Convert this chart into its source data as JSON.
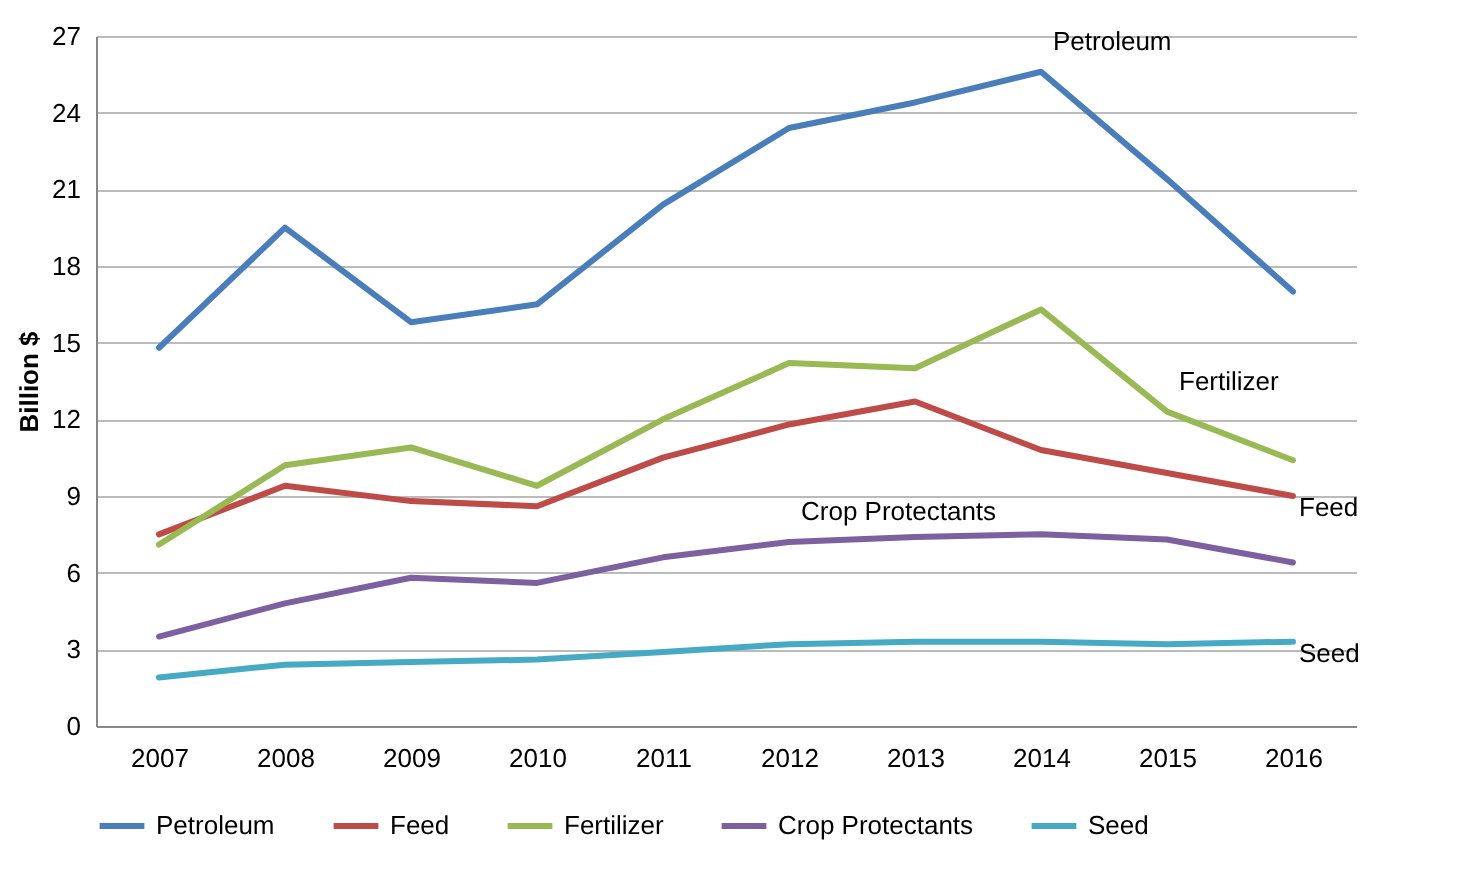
{
  "chart_data": {
    "type": "line",
    "ylabel": "Billion $",
    "categories": [
      "2007",
      "2008",
      "2009",
      "2010",
      "2011",
      "2012",
      "2013",
      "2014",
      "2015",
      "2016"
    ],
    "series": [
      {
        "name": "Petroleum",
        "color": "#4a7ebb",
        "values": [
          14.8,
          19.5,
          15.8,
          16.5,
          20.4,
          23.4,
          24.4,
          25.6,
          21.4,
          17.0
        ]
      },
      {
        "name": "Feed",
        "color": "#be4b48",
        "values": [
          7.5,
          9.4,
          8.8,
          8.6,
          10.5,
          11.8,
          12.7,
          10.8,
          9.9,
          9.0
        ]
      },
      {
        "name": "Fertilizer",
        "color": "#98b954",
        "values": [
          7.1,
          10.2,
          10.9,
          9.4,
          12.0,
          14.2,
          14.0,
          16.3,
          12.3,
          10.4
        ]
      },
      {
        "name": "Crop Protectants",
        "color": "#7d60a0",
        "values": [
          3.5,
          4.8,
          5.8,
          5.6,
          6.6,
          7.2,
          7.4,
          7.5,
          7.3,
          6.4
        ]
      },
      {
        "name": "Seed",
        "color": "#46aac5",
        "values": [
          1.9,
          2.4,
          2.5,
          2.6,
          2.9,
          3.2,
          3.3,
          3.3,
          3.2,
          3.3
        ]
      }
    ],
    "annotations": [
      {
        "text": "Petroleum",
        "x": "2014",
        "y": 25.6
      },
      {
        "text": "Fertilizer",
        "x": "2015",
        "y": 12.3
      },
      {
        "text": "Feed",
        "x": "2016",
        "y": 9.0
      },
      {
        "text": "Crop Protectants",
        "x": "2012",
        "y": 7.2
      },
      {
        "text": "Seed",
        "x": "2016",
        "y": 3.3
      }
    ],
    "ylim": [
      0,
      27
    ],
    "yticks": [
      0,
      3,
      6,
      9,
      12,
      15,
      18,
      21,
      24,
      27
    ],
    "grid": "y",
    "legend": "bottom",
    "marker": "none",
    "line_style": "solid"
  }
}
